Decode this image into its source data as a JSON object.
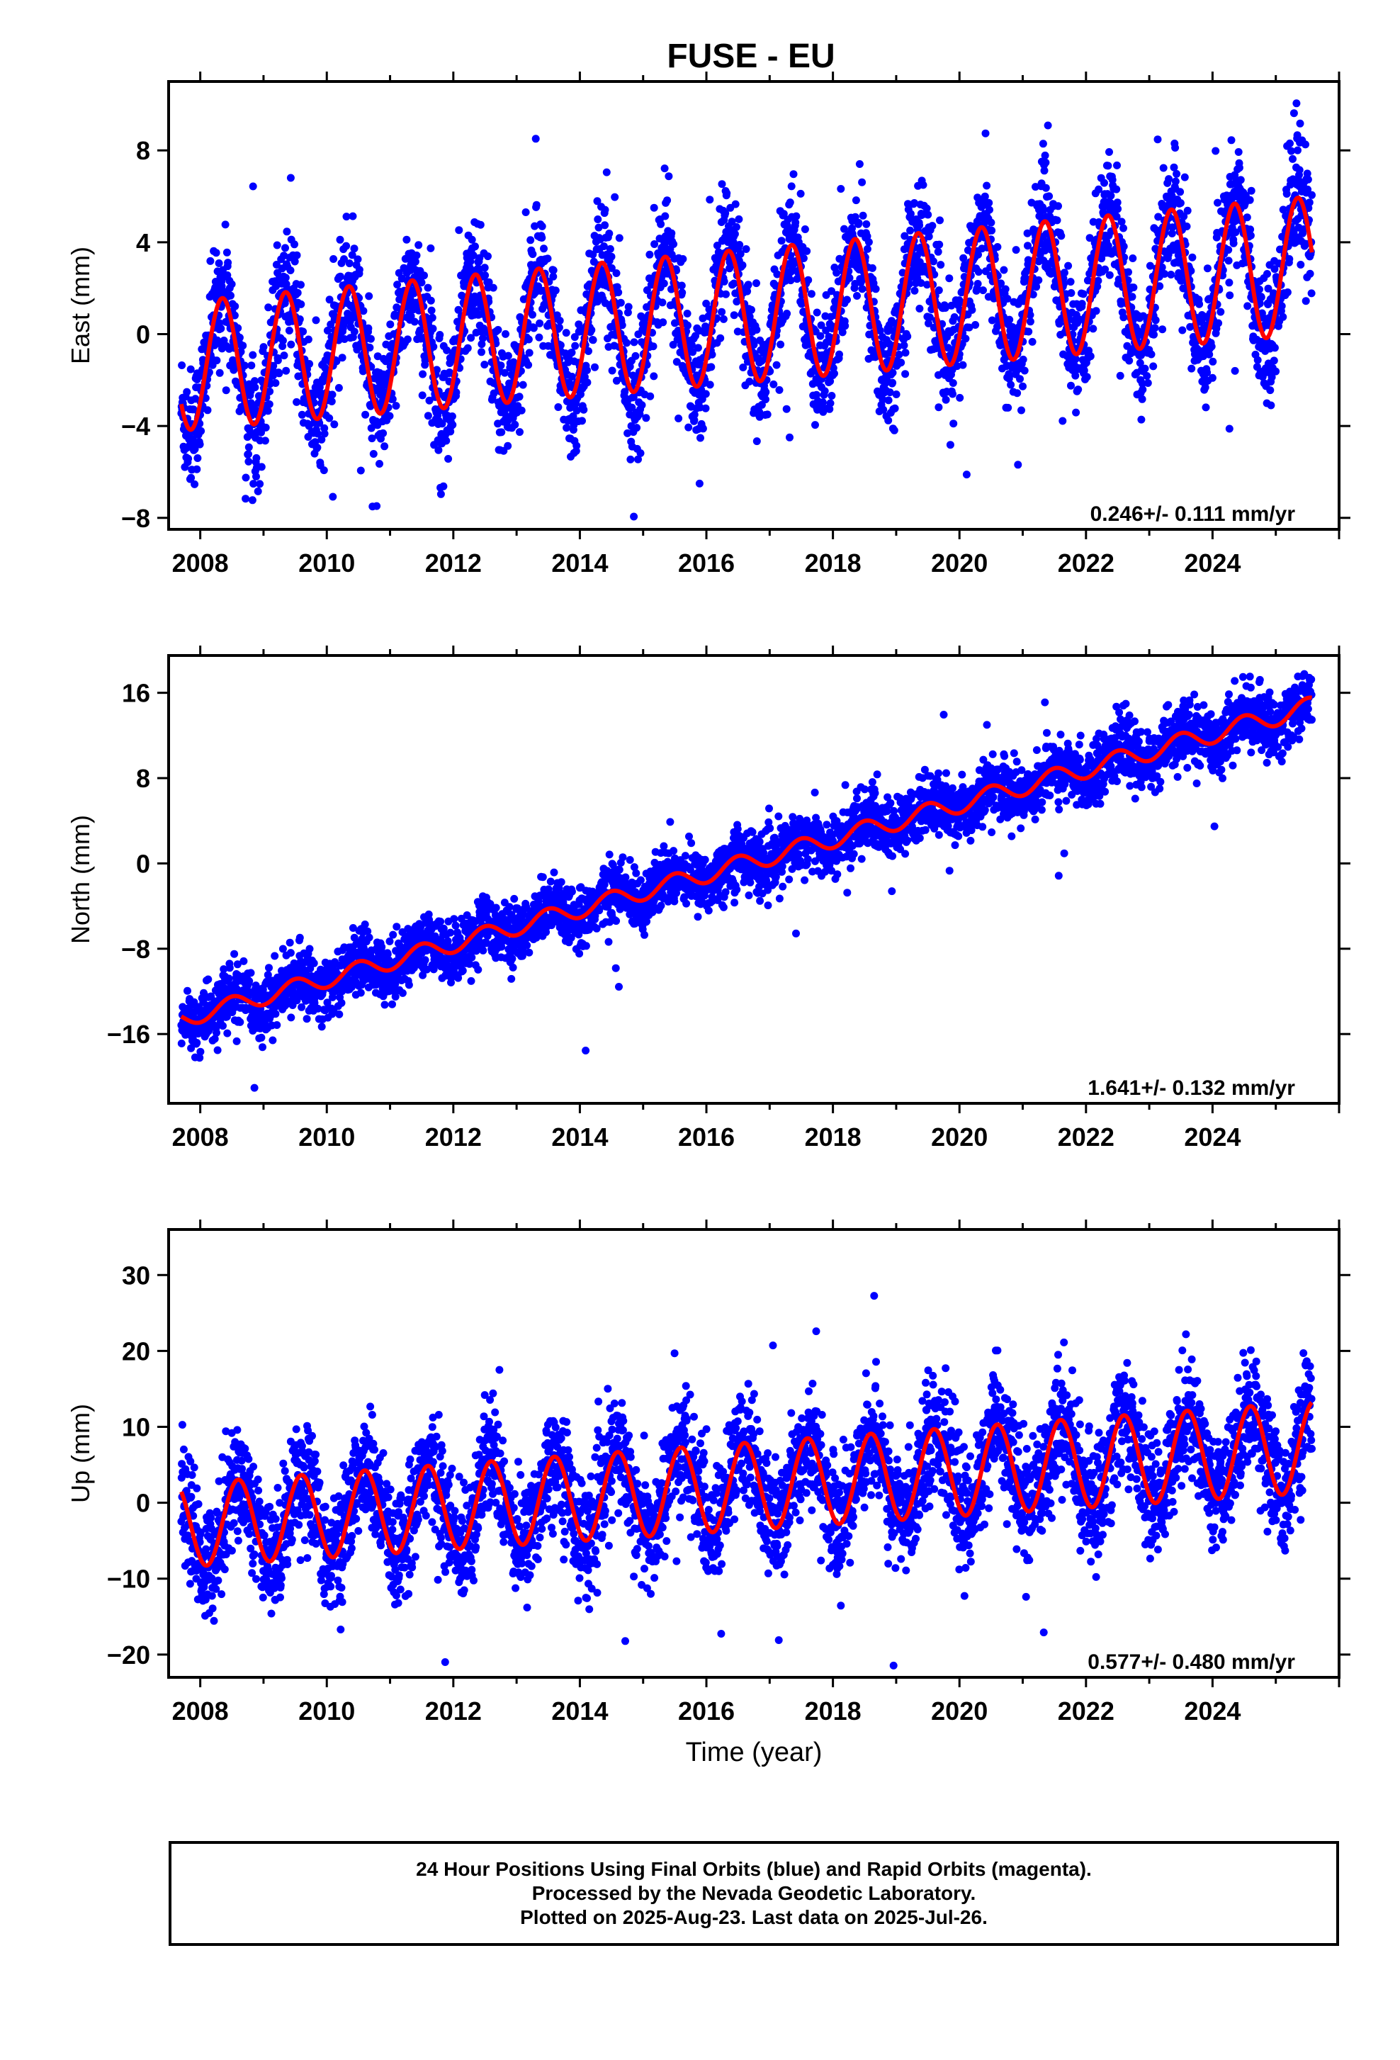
{
  "title": "FUSE - EU",
  "colors": {
    "points": "#0000ff",
    "fit": "#ff0000",
    "axis": "#000000"
  },
  "footer": {
    "line1": "24 Hour Positions Using Final Orbits (blue) and Rapid Orbits (magenta).",
    "line2": "Processed by the Nevada Geodetic Laboratory.",
    "line3": "Plotted on 2025-Aug-23. Last data on 2025-Jul-26."
  },
  "chart_data": [
    {
      "type": "scatter",
      "component": "East",
      "ylabel": "East (mm)",
      "xlabel": "",
      "xlim": [
        2007.5,
        2026.0
      ],
      "ylim": [
        -8.5,
        11.0
      ],
      "xticks": [
        "2008",
        "2010",
        "2012",
        "2014",
        "2016",
        "2018",
        "2020",
        "2022",
        "2024"
      ],
      "yticks": [
        "-8",
        "-4",
        "0",
        "4",
        "8"
      ],
      "rate_label": "0.246+/- 0.111 mm/yr",
      "model": {
        "start": 2007.7,
        "end": 2025.57,
        "offset": -1.4,
        "trend": 0.246,
        "amp_start": 2.8,
        "amp_end": 3.0,
        "phase": 2008.35,
        "scatter": 1.3
      },
      "series": [
        {
          "name": "Final Orbits",
          "color": "#0000ff"
        }
      ]
    },
    {
      "type": "scatter",
      "component": "North",
      "ylabel": "North (mm)",
      "xlabel": "",
      "xlim": [
        2007.5,
        2026.0
      ],
      "ylim": [
        -22.5,
        19.5
      ],
      "xticks": [
        "2008",
        "2010",
        "2012",
        "2014",
        "2016",
        "2018",
        "2020",
        "2022",
        "2024"
      ],
      "yticks": [
        "-16",
        "-8",
        "0",
        "8",
        "16"
      ],
      "rate_label": "1.641+/- 0.132 mm/yr",
      "model": {
        "start": 2007.7,
        "end": 2025.57,
        "offset": -14.6,
        "trend": 1.641,
        "amp_start": 0.8,
        "amp_end": 0.9,
        "phase": 2008.5,
        "scatter": 1.4
      },
      "series": [
        {
          "name": "Final Orbits",
          "color": "#0000ff"
        }
      ]
    },
    {
      "type": "scatter",
      "component": "Up",
      "ylabel": "Up (mm)",
      "xlabel": "Time (year)",
      "xlim": [
        2007.5,
        2026.0
      ],
      "ylim": [
        -23.0,
        36.0
      ],
      "xticks": [
        "2008",
        "2010",
        "2012",
        "2014",
        "2016",
        "2018",
        "2020",
        "2022",
        "2024"
      ],
      "yticks": [
        "-20",
        "-10",
        "0",
        "10",
        "20",
        "30"
      ],
      "rate_label": "0.577+/- 0.480 mm/yr",
      "model": {
        "start": 2007.7,
        "end": 2025.57,
        "offset": -3.0,
        "trend": 0.577,
        "amp_start": 5.5,
        "amp_end": 6.0,
        "phase": 2008.6,
        "scatter": 3.8
      },
      "series": [
        {
          "name": "Final Orbits",
          "color": "#0000ff"
        }
      ]
    }
  ]
}
